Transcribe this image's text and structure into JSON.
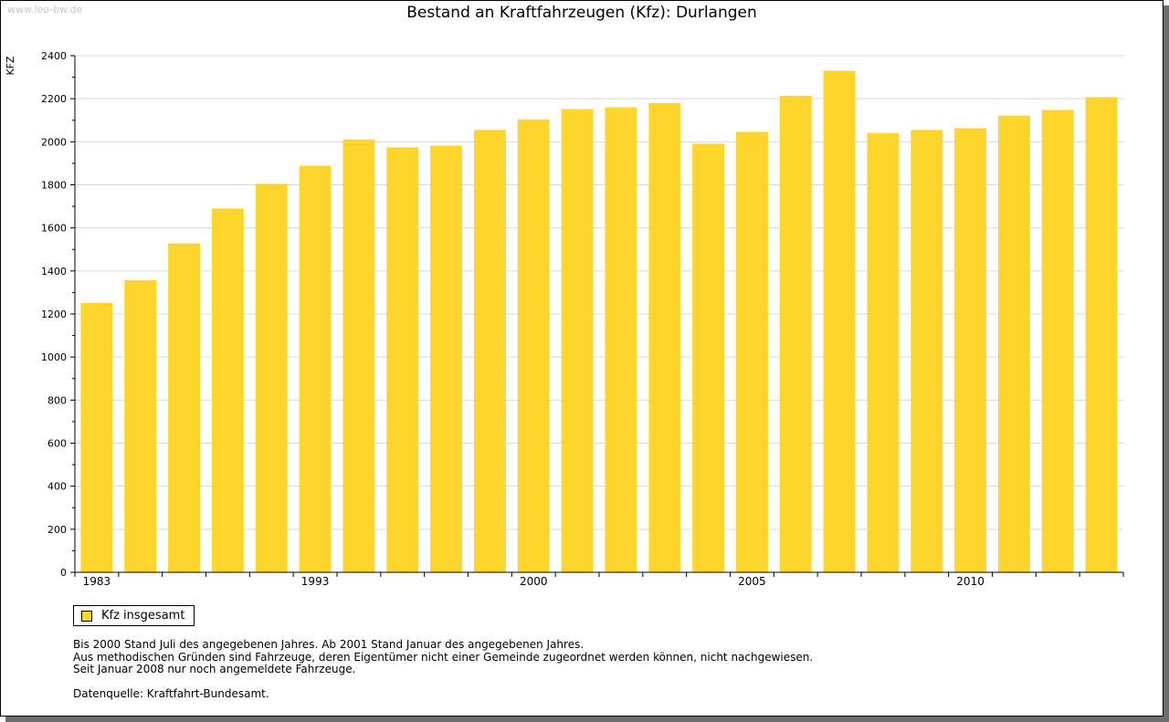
{
  "watermark": "www.leo-bw.de",
  "colors": {
    "bar": "#fed52c",
    "grid": "#d9d9d9",
    "axis": "#000000"
  },
  "chart_data": {
    "type": "bar",
    "title": "Bestand an Kraftfahrzeugen (Kfz): Durlangen",
    "xlabel": "",
    "ylabel": "KFZ",
    "ylim": [
      0,
      2400
    ],
    "yticks": [
      0,
      200,
      400,
      600,
      800,
      1000,
      1200,
      1400,
      1600,
      1800,
      2000,
      2200,
      2400
    ],
    "categories": [
      "1983",
      "",
      "",
      "",
      "",
      "1993",
      "",
      "",
      "",
      "",
      "2000",
      "",
      "",
      "",
      "",
      "2005",
      "",
      "",
      "",
      "",
      "2010",
      "",
      "",
      ""
    ],
    "x_tick_labels": [
      "1983",
      "1993",
      "2000",
      "2005",
      "2010"
    ],
    "series": [
      {
        "name": "Kfz insgesamt",
        "values": [
          1252,
          1358,
          1528,
          1690,
          1805,
          1889,
          2011,
          1974,
          1982,
          2055,
          2104,
          2152,
          2160,
          2180,
          1991,
          2046,
          2214,
          2330,
          2041,
          2055,
          2063,
          2122,
          2148,
          2207
        ]
      }
    ],
    "grid": true,
    "legend_position": "bottom-left"
  },
  "legend": {
    "label": "Kfz insgesamt"
  },
  "notes": [
    "Bis 2000 Stand Juli des angegebenen Jahres. Ab 2001 Stand Januar des angegebenen Jahres.",
    "Aus methodischen Gründen sind Fahrzeuge, deren Eigentümer nicht einer Gemeinde zugeordnet werden können, nicht nachgewiesen.",
    "Seit Januar 2008 nur noch angemeldete Fahrzeuge."
  ],
  "source": "Datenquelle: Kraftfahrt-Bundesamt."
}
